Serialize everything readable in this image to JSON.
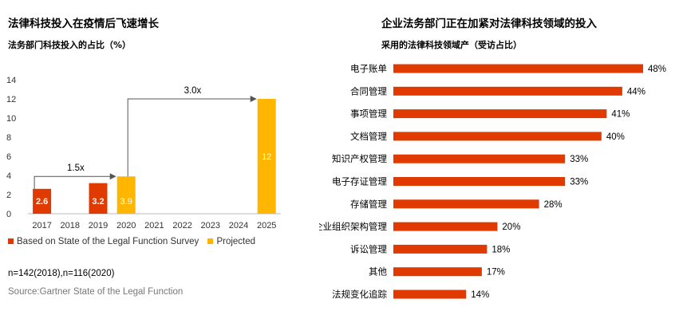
{
  "left": {
    "title": "法律科技投入在疫情后飞速增长",
    "subtitle": "法务部门科技投入的占比（%）",
    "legend": [
      {
        "label": "Based on State of the Legal Function Survey",
        "color": "#e03a00"
      },
      {
        "label": "Projected",
        "color": "#ffb600"
      }
    ],
    "note": "n=142(2018),n=116(2020)",
    "source": "Source:Gartner State of the Legal Function"
  },
  "right": {
    "title": "企业法务部门正在加紧对法律科技领域的投入",
    "subtitle": "采用的法律科技领域产（受访占比）"
  },
  "chart_data": [
    {
      "type": "bar",
      "title": "法律科技投入在疫情后飞速增长",
      "subtitle": "法务部门科技投入的占比（%）",
      "categories": [
        "2017",
        "2018",
        "2019",
        "2020",
        "2021",
        "2022",
        "2023",
        "2024",
        "2025"
      ],
      "series": [
        {
          "name": "Based on State of the Legal Function Survey",
          "color": "#e03a00",
          "values": [
            2.6,
            null,
            3.2,
            null,
            null,
            null,
            null,
            null,
            null
          ]
        },
        {
          "name": "Projected",
          "color": "#ffb600",
          "values": [
            null,
            null,
            null,
            3.9,
            null,
            null,
            null,
            null,
            12
          ]
        }
      ],
      "ylim": [
        0,
        14
      ],
      "yticks": [
        0,
        2,
        4,
        6,
        8,
        10,
        12,
        14
      ],
      "grid": false,
      "legend_position": "bottom",
      "annotations": [
        {
          "text": "1.5x",
          "from": "2017",
          "to": "2020"
        },
        {
          "text": "3.0x",
          "from": "2020",
          "to": "2025"
        }
      ]
    },
    {
      "type": "bar",
      "orientation": "horizontal",
      "title": "企业法务部门正在加紧对法律科技领域的投入",
      "subtitle": "采用的法律科技领域产（受访占比）",
      "categories": [
        "电子账单",
        "合同管理",
        "事项管理",
        "文档管理",
        "知识产权管理",
        "电子存证管理",
        "存储管理",
        "企业组织架构管理",
        "诉讼管理",
        "其他",
        "法规变化追踪"
      ],
      "values": [
        48,
        44,
        41,
        40,
        33,
        33,
        28,
        20,
        18,
        17,
        14
      ],
      "value_suffix": "%",
      "color": "#e03a00",
      "xlim": [
        0,
        48
      ],
      "grid": false
    }
  ]
}
